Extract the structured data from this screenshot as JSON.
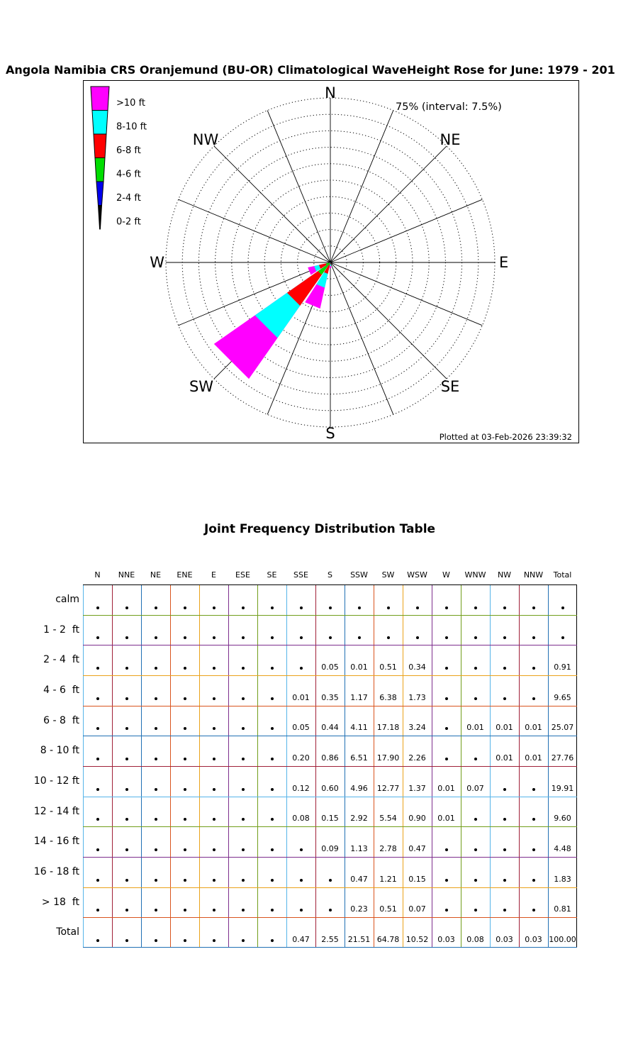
{
  "title": "Angola Namibia CRS Oranjemund (BU-OR) Climatological WaveHeight Rose for June: 1979 - 201",
  "rose": {
    "radial_label": "75% (interval: 7.5%)",
    "plotted_at": "Plotted at 03-Feb-2026 23:39:32",
    "compass_labels": [
      "N",
      "NE",
      "E",
      "SE",
      "S",
      "SW",
      "W",
      "NW"
    ],
    "legend": [
      {
        "label": ">10 ft",
        "color": "#FF00FF"
      },
      {
        "label": "8-10 ft",
        "color": "#00FFFF"
      },
      {
        "label": "6-8 ft",
        "color": "#FF0000"
      },
      {
        "label": "4-6 ft",
        "color": "#00DD00"
      },
      {
        "label": "2-4 ft",
        "color": "#0000EE"
      },
      {
        "label": "0-2 ft",
        "color": "#000000"
      }
    ]
  },
  "grid_colors": {
    "vertical": [
      "#56B4E9",
      "#A02038",
      "#2070B4",
      "#D9541E",
      "#EAA21A",
      "#7D2E8D",
      "#729E1B",
      "#56B4E9",
      "#A02038",
      "#2070B4",
      "#D9541E",
      "#EAA21A",
      "#7D2E8D",
      "#729E1B",
      "#56B4E9",
      "#A02038",
      "#2070B4",
      "#000000"
    ],
    "horizontal": [
      "#000000",
      "#729E1B",
      "#7D2E8D",
      "#EAA21A",
      "#D9541E",
      "#2070B4",
      "#A02038",
      "#56B4E9",
      "#729E1B",
      "#7D2E8D",
      "#EAA21A",
      "#D9541E",
      "#2070B4"
    ]
  },
  "chart_data": [
    {
      "type": "rose",
      "title": "Climatological WaveHeight Rose for June",
      "units": "percent frequency",
      "max_radius_pct": 75,
      "ring_interval_pct": 7.5,
      "num_rings": 10,
      "directions": [
        "N",
        "NNE",
        "NE",
        "ENE",
        "E",
        "ESE",
        "SE",
        "SSE",
        "S",
        "SSW",
        "SW",
        "WSW",
        "W",
        "WNW",
        "NW",
        "NNW"
      ],
      "series": [
        {
          "name": "0-2 ft",
          "color": "#000000",
          "values": [
            0,
            0,
            0,
            0,
            0,
            0,
            0,
            0,
            0,
            0,
            0,
            0,
            0,
            0,
            0,
            0
          ]
        },
        {
          "name": "2-4 ft",
          "color": "#0000EE",
          "values": [
            0,
            0,
            0,
            0,
            0,
            0,
            0,
            0,
            0.05,
            0.01,
            0.51,
            0.34,
            0,
            0,
            0,
            0
          ]
        },
        {
          "name": "4-6 ft",
          "color": "#00DD00",
          "values": [
            0,
            0,
            0,
            0,
            0,
            0,
            0,
            0.01,
            0.35,
            1.17,
            6.38,
            1.73,
            0,
            0,
            0,
            0
          ]
        },
        {
          "name": "6-8 ft",
          "color": "#FF0000",
          "values": [
            0,
            0,
            0,
            0,
            0,
            0,
            0,
            0.05,
            0.44,
            4.11,
            17.18,
            3.24,
            0,
            0.01,
            0.01,
            0.01
          ]
        },
        {
          "name": "8-10 ft",
          "color": "#00FFFF",
          "values": [
            0,
            0,
            0,
            0,
            0,
            0,
            0,
            0.2,
            0.86,
            6.51,
            17.9,
            2.26,
            0,
            0,
            0.01,
            0.01
          ]
        },
        {
          "name": ">10 ft",
          "color": "#FF00FF",
          "values": [
            0,
            0,
            0,
            0,
            0,
            0,
            0,
            0.2,
            0.84,
            9.71,
            22.81,
            2.96,
            0.02,
            0.07,
            0,
            0
          ]
        }
      ]
    },
    {
      "type": "table",
      "title": "Joint Frequency Distribution Table",
      "columns": [
        "N",
        "NNE",
        "NE",
        "ENE",
        "E",
        "ESE",
        "SE",
        "SSE",
        "S",
        "SSW",
        "SW",
        "WSW",
        "W",
        "WNW",
        "NW",
        "NNW",
        "Total"
      ],
      "rows": [
        {
          "label": "calm",
          "cells": [
            "•",
            "•",
            "•",
            "•",
            "•",
            "•",
            "•",
            "•",
            "•",
            "•",
            "•",
            "•",
            "•",
            "•",
            "•",
            "•",
            "•"
          ]
        },
        {
          "label": "1 - 2  ft",
          "cells": [
            "•",
            "•",
            "•",
            "•",
            "•",
            "•",
            "•",
            "•",
            "•",
            "•",
            "•",
            "•",
            "•",
            "•",
            "•",
            "•",
            "•"
          ]
        },
        {
          "label": "2 - 4  ft",
          "cells": [
            "•",
            "•",
            "•",
            "•",
            "•",
            "•",
            "•",
            "•",
            "0.05",
            "0.01",
            "0.51",
            "0.34",
            "•",
            "•",
            "•",
            "•",
            "0.91"
          ]
        },
        {
          "label": "4 - 6  ft",
          "cells": [
            "•",
            "•",
            "•",
            "•",
            "•",
            "•",
            "•",
            "0.01",
            "0.35",
            "1.17",
            "6.38",
            "1.73",
            "•",
            "•",
            "•",
            "•",
            "9.65"
          ]
        },
        {
          "label": "6 - 8  ft",
          "cells": [
            "•",
            "•",
            "•",
            "•",
            "•",
            "•",
            "•",
            "0.05",
            "0.44",
            "4.11",
            "17.18",
            "3.24",
            "•",
            "0.01",
            "0.01",
            "0.01",
            "25.07"
          ]
        },
        {
          "label": "8 - 10 ft",
          "cells": [
            "•",
            "•",
            "•",
            "•",
            "•",
            "•",
            "•",
            "0.20",
            "0.86",
            "6.51",
            "17.90",
            "2.26",
            "•",
            "•",
            "0.01",
            "0.01",
            "27.76"
          ]
        },
        {
          "label": "10 - 12 ft",
          "cells": [
            "•",
            "•",
            "•",
            "•",
            "•",
            "•",
            "•",
            "0.12",
            "0.60",
            "4.96",
            "12.77",
            "1.37",
            "0.01",
            "0.07",
            "•",
            "•",
            "19.91"
          ]
        },
        {
          "label": "12 - 14 ft",
          "cells": [
            "•",
            "•",
            "•",
            "•",
            "•",
            "•",
            "•",
            "0.08",
            "0.15",
            "2.92",
            "5.54",
            "0.90",
            "0.01",
            "•",
            "•",
            "•",
            "9.60"
          ]
        },
        {
          "label": "14 - 16 ft",
          "cells": [
            "•",
            "•",
            "•",
            "•",
            "•",
            "•",
            "•",
            "•",
            "0.09",
            "1.13",
            "2.78",
            "0.47",
            "•",
            "•",
            "•",
            "•",
            "4.48"
          ]
        },
        {
          "label": "16 - 18 ft",
          "cells": [
            "•",
            "•",
            "•",
            "•",
            "•",
            "•",
            "•",
            "•",
            "•",
            "0.47",
            "1.21",
            "0.15",
            "•",
            "•",
            "•",
            "•",
            "1.83"
          ]
        },
        {
          "label": "> 18  ft",
          "cells": [
            "•",
            "•",
            "•",
            "•",
            "•",
            "•",
            "•",
            "•",
            "•",
            "0.23",
            "0.51",
            "0.07",
            "•",
            "•",
            "•",
            "•",
            "0.81"
          ]
        },
        {
          "label": "Total",
          "cells": [
            "•",
            "•",
            "•",
            "•",
            "•",
            "•",
            "•",
            "0.47",
            "2.55",
            "21.51",
            "64.78",
            "10.52",
            "0.03",
            "0.08",
            "0.03",
            "0.03",
            "100.00"
          ]
        }
      ]
    }
  ]
}
